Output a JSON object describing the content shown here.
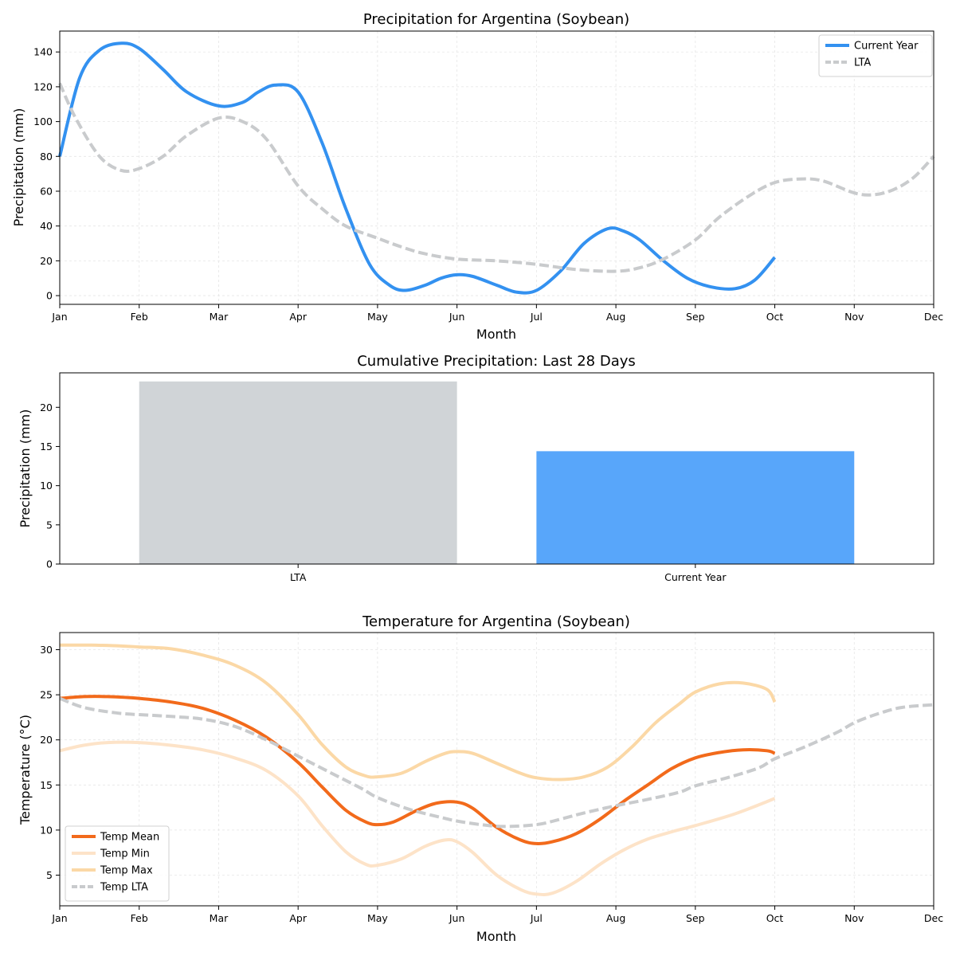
{
  "colors": {
    "current": "#3391f0",
    "lta": "#c9cbcd",
    "lta_bar": "#d0d4d7",
    "current_bar": "#58a6fa",
    "temp_mean": "#f26a1b",
    "temp_min": "#fde3c8",
    "temp_max": "#fbd8a6",
    "temp_lta": "#c9cbcd",
    "grid": "#e6e6e6"
  },
  "chart_data": [
    {
      "type": "line",
      "title": "Precipitation for Argentina (Soybean)",
      "xlabel": "Month",
      "ylabel": "Precipitation (mm)",
      "x_ticks": [
        "Jan",
        "Feb",
        "Mar",
        "Apr",
        "May",
        "Jun",
        "Jul",
        "Aug",
        "Sep",
        "Oct",
        "Nov",
        "Dec"
      ],
      "xlim": [
        0,
        11
      ],
      "ylim": [
        -5,
        152
      ],
      "y_ticks": [
        0,
        20,
        40,
        60,
        80,
        100,
        120,
        140
      ],
      "grid": true,
      "legend": "top-right",
      "series": [
        {
          "name": "Current Year",
          "style": "solid",
          "x": [
            0,
            0.25,
            0.5,
            0.78,
            1,
            1.3,
            1.6,
            2,
            2.3,
            2.5,
            2.72,
            3,
            3.3,
            3.6,
            3.9,
            4.15,
            4.35,
            4.6,
            4.8,
            5,
            5.2,
            5.5,
            5.75,
            6,
            6.3,
            6.6,
            6.9,
            7.1,
            7.3,
            7.6,
            7.9,
            8.2,
            8.5,
            8.75,
            9
          ],
          "y": [
            80,
            125,
            141,
            145,
            142,
            130,
            117,
            109,
            111,
            117,
            121,
            117,
            88,
            50,
            18,
            6,
            3,
            6,
            10,
            12,
            11,
            6,
            2,
            3,
            14,
            30,
            38.5,
            37,
            32,
            20,
            10,
            5,
            4,
            9,
            22
          ]
        },
        {
          "name": "LTA",
          "style": "dashed",
          "x": [
            0,
            0.2,
            0.5,
            0.77,
            1,
            1.3,
            1.6,
            2,
            2.3,
            2.6,
            3,
            3.3,
            3.6,
            4,
            4.3,
            4.6,
            5,
            5.5,
            6,
            6.5,
            7,
            7.3,
            7.6,
            8,
            8.3,
            8.7,
            9,
            9.3,
            9.6,
            10,
            10.25,
            10.5,
            10.75,
            11
          ],
          "y": [
            122,
            102,
            80,
            72,
            73,
            80,
            92,
            102,
            100,
            90,
            63,
            50,
            40,
            33,
            28,
            24,
            21,
            20,
            18,
            15,
            14,
            16,
            21,
            32,
            45,
            58,
            65,
            67,
            66,
            59,
            58,
            61,
            68,
            80
          ]
        }
      ]
    },
    {
      "type": "bar",
      "title": "Cumulative Precipitation: Last 28 Days",
      "xlabel": "",
      "ylabel": "Precipitation (mm)",
      "categories": [
        "LTA",
        "Current Year"
      ],
      "values": [
        23.3,
        14.4
      ],
      "ylim": [
        0,
        24.4
      ],
      "y_ticks": [
        0,
        5,
        10,
        15,
        20
      ],
      "grid": false
    },
    {
      "type": "line",
      "title": "Temperature for Argentina (Soybean)",
      "xlabel": "Month",
      "ylabel": "Temperature (°C)",
      "x_ticks": [
        "Jan",
        "Feb",
        "Mar",
        "Apr",
        "May",
        "Jun",
        "Jul",
        "Aug",
        "Sep",
        "Oct",
        "Nov",
        "Dec"
      ],
      "xlim": [
        0,
        11
      ],
      "ylim": [
        1.6,
        31.9
      ],
      "y_ticks": [
        5,
        10,
        15,
        20,
        25,
        30
      ],
      "grid": true,
      "legend": "bottom-left",
      "series": [
        {
          "name": "Temp Mean",
          "style": "solid",
          "x": [
            0,
            0.3,
            0.6,
            1,
            1.4,
            1.8,
            2.2,
            2.6,
            3,
            3.3,
            3.6,
            3.85,
            4,
            4.2,
            4.5,
            4.75,
            5,
            5.2,
            5.5,
            5.8,
            6,
            6.2,
            6.5,
            6.8,
            7.1,
            7.4,
            7.7,
            8,
            8.3,
            8.6,
            8.9,
            9
          ],
          "y": [
            24.6,
            24.8,
            24.8,
            24.6,
            24.2,
            23.5,
            22.2,
            20.3,
            17.5,
            14.8,
            12.2,
            10.9,
            10.6,
            10.9,
            12.2,
            13,
            13.1,
            12.4,
            10.3,
            8.9,
            8.5,
            8.7,
            9.6,
            11.2,
            13.2,
            15,
            16.8,
            18,
            18.6,
            18.9,
            18.8,
            18.5
          ]
        },
        {
          "name": "Temp Min",
          "style": "solid",
          "x": [
            0,
            0.3,
            0.6,
            1,
            1.4,
            1.8,
            2.2,
            2.6,
            3,
            3.3,
            3.6,
            3.85,
            4,
            4.3,
            4.6,
            4.85,
            5,
            5.2,
            5.5,
            5.8,
            6,
            6.2,
            6.5,
            6.8,
            7.1,
            7.4,
            7.7,
            8,
            8.5,
            9
          ],
          "y": [
            18.8,
            19.4,
            19.7,
            19.7,
            19.4,
            18.9,
            18,
            16.6,
            13.8,
            10.5,
            7.6,
            6.2,
            6.1,
            6.8,
            8.2,
            8.9,
            8.7,
            7.5,
            5,
            3.4,
            2.9,
            3,
            4.3,
            6.2,
            7.8,
            9,
            9.8,
            10.5,
            11.8,
            13.5
          ]
        },
        {
          "name": "Temp Max",
          "style": "solid",
          "x": [
            0,
            0.4,
            0.8,
            1,
            1.4,
            1.8,
            2.2,
            2.6,
            3,
            3.3,
            3.6,
            3.85,
            4,
            4.3,
            4.6,
            4.85,
            5,
            5.2,
            5.5,
            5.8,
            6,
            6.3,
            6.6,
            6.9,
            7.2,
            7.5,
            7.8,
            8,
            8.3,
            8.6,
            8.9,
            9
          ],
          "y": [
            30.5,
            30.5,
            30.4,
            30.3,
            30.1,
            29.4,
            28.3,
            26.3,
            22.8,
            19.5,
            17,
            16,
            15.9,
            16.3,
            17.6,
            18.5,
            18.7,
            18.5,
            17.4,
            16.3,
            15.8,
            15.6,
            15.9,
            17,
            19.2,
            21.9,
            24,
            25.3,
            26.2,
            26.3,
            25.6,
            24.2
          ]
        },
        {
          "name": "Temp LTA",
          "style": "dashed",
          "x": [
            0,
            0.3,
            0.7,
            1,
            1.4,
            1.8,
            2.2,
            2.6,
            3,
            3.4,
            3.8,
            4,
            4.4,
            4.8,
            5,
            5.3,
            5.6,
            6,
            6.3,
            6.6,
            7,
            7.4,
            7.8,
            8,
            8.4,
            8.8,
            9,
            9.4,
            9.8,
            10,
            10.3,
            10.6,
            11
          ],
          "y": [
            24.6,
            23.6,
            23,
            22.8,
            22.6,
            22.3,
            21.5,
            20,
            18.2,
            16.4,
            14.6,
            13.6,
            12.3,
            11.4,
            11,
            10.6,
            10.4,
            10.6,
            11.2,
            11.9,
            12.7,
            13.4,
            14.2,
            14.9,
            15.8,
            16.9,
            17.9,
            19.3,
            20.9,
            21.9,
            22.9,
            23.6,
            23.9
          ]
        }
      ]
    }
  ]
}
